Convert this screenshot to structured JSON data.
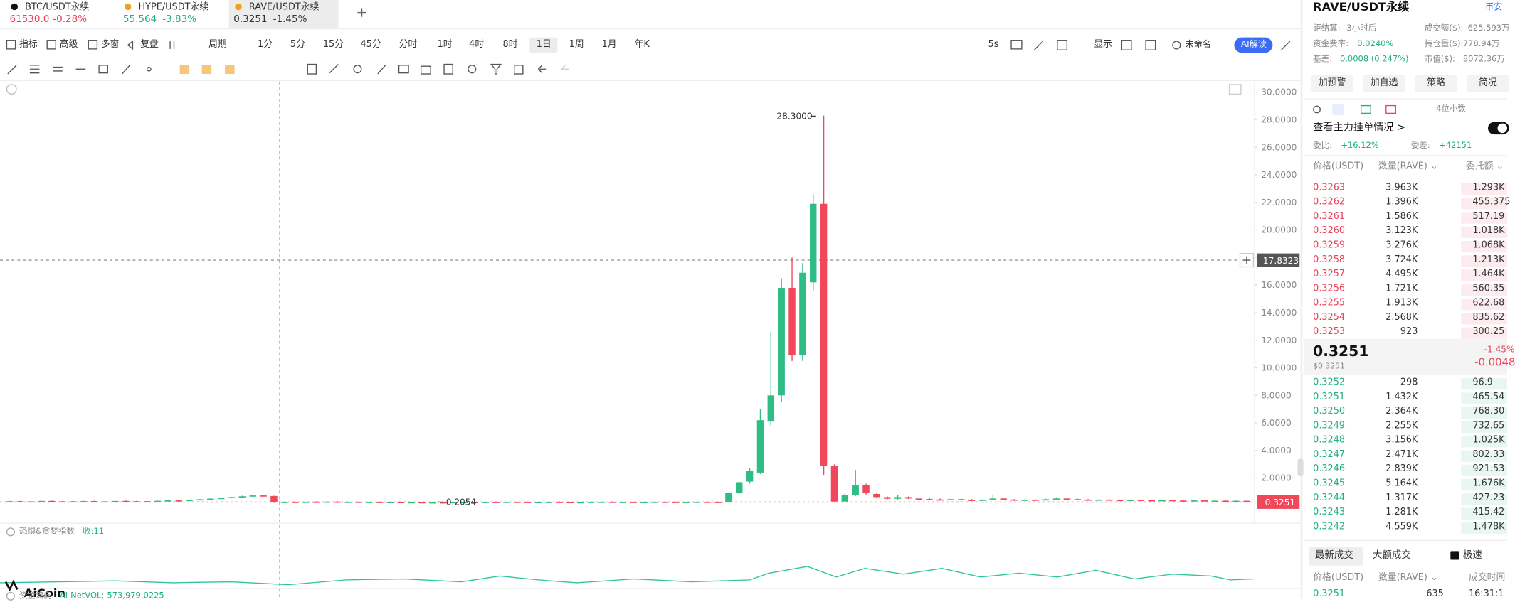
{
  "tabs": [
    {
      "symbol": "BTC/USDT永续",
      "price": "61530.0",
      "change": "-0.28%"
    },
    {
      "symbol": "HYPE/USDT永续",
      "price": "55.564",
      "change": "-3.83%"
    },
    {
      "symbol": "RAVE/USDT永续",
      "price": "0.3251",
      "change": "-1.45%"
    }
  ],
  "toolbar": {
    "tools": [
      "指标",
      "高级",
      "多窗",
      "复盘"
    ],
    "period_label": "周期",
    "periods": [
      "1分",
      "5分",
      "15分",
      "45分",
      "分时",
      "1时",
      "4时",
      "8时",
      "1日",
      "1周",
      "1月",
      "年K"
    ],
    "active_period_index": 8,
    "refresh": "5s",
    "display": "显示",
    "layout_name": "未命名",
    "ai_button": "AI解读"
  },
  "chart": {
    "ylim": [
      0,
      30
    ],
    "yticks": [
      {
        "value": 30,
        "label": "30.0000"
      },
      {
        "value": 28,
        "label": "28.0000"
      },
      {
        "value": 26,
        "label": "26.0000"
      },
      {
        "value": 24,
        "label": "24.0000"
      },
      {
        "value": 22,
        "label": "22.0000"
      },
      {
        "value": 20,
        "label": "20.0000"
      },
      {
        "value": 18,
        "label": "18.0000"
      },
      {
        "value": 16,
        "label": "16.0000"
      },
      {
        "value": 14,
        "label": "14.0000"
      },
      {
        "value": 12,
        "label": "12.0000"
      },
      {
        "value": 10,
        "label": "10.0000"
      },
      {
        "value": 8,
        "label": "8.0000"
      },
      {
        "value": 6,
        "label": "6.0000"
      },
      {
        "value": 4,
        "label": "4.0000"
      },
      {
        "value": 2,
        "label": "2.0000"
      }
    ],
    "up_color": "#2ebd85",
    "down_color": "#f0475a",
    "candles": [
      [
        0.3,
        0.34,
        0.27,
        0.32
      ],
      [
        0.32,
        0.35,
        0.28,
        0.29
      ],
      [
        0.29,
        0.33,
        0.26,
        0.31
      ],
      [
        0.31,
        0.36,
        0.29,
        0.34
      ],
      [
        0.34,
        0.37,
        0.3,
        0.31
      ],
      [
        0.31,
        0.34,
        0.27,
        0.28
      ],
      [
        0.28,
        0.33,
        0.26,
        0.32
      ],
      [
        0.32,
        0.36,
        0.3,
        0.33
      ],
      [
        0.33,
        0.36,
        0.29,
        0.3
      ],
      [
        0.3,
        0.33,
        0.27,
        0.31
      ],
      [
        0.31,
        0.35,
        0.29,
        0.34
      ],
      [
        0.34,
        0.38,
        0.31,
        0.32
      ],
      [
        0.32,
        0.35,
        0.28,
        0.3
      ],
      [
        0.3,
        0.34,
        0.28,
        0.33
      ],
      [
        0.33,
        0.37,
        0.31,
        0.35
      ],
      [
        0.35,
        0.4,
        0.33,
        0.38
      ],
      [
        0.38,
        0.42,
        0.34,
        0.36
      ],
      [
        0.36,
        0.44,
        0.35,
        0.42
      ],
      [
        0.42,
        0.48,
        0.4,
        0.46
      ],
      [
        0.46,
        0.53,
        0.43,
        0.51
      ],
      [
        0.51,
        0.58,
        0.48,
        0.56
      ],
      [
        0.56,
        0.64,
        0.53,
        0.62
      ],
      [
        0.62,
        0.72,
        0.58,
        0.68
      ],
      [
        0.68,
        0.8,
        0.64,
        0.74
      ],
      [
        0.74,
        0.78,
        0.66,
        0.7
      ],
      [
        0.7,
        0.72,
        0.2,
        0.24
      ],
      [
        0.24,
        0.3,
        0.21,
        0.27
      ],
      [
        0.27,
        0.31,
        0.24,
        0.25
      ],
      [
        0.25,
        0.29,
        0.22,
        0.28
      ],
      [
        0.28,
        0.32,
        0.25,
        0.26
      ],
      [
        0.26,
        0.3,
        0.23,
        0.29
      ],
      [
        0.29,
        0.33,
        0.26,
        0.27
      ],
      [
        0.27,
        0.3,
        0.24,
        0.28
      ],
      [
        0.28,
        0.31,
        0.25,
        0.26
      ],
      [
        0.26,
        0.29,
        0.23,
        0.27
      ],
      [
        0.27,
        0.3,
        0.24,
        0.25
      ],
      [
        0.25,
        0.28,
        0.22,
        0.26
      ],
      [
        0.26,
        0.29,
        0.23,
        0.24
      ],
      [
        0.24,
        0.27,
        0.22,
        0.25
      ],
      [
        0.25,
        0.28,
        0.22,
        0.23
      ],
      [
        0.23,
        0.26,
        0.21,
        0.24
      ],
      [
        0.24,
        0.26,
        0.2054,
        0.22
      ],
      [
        0.22,
        0.26,
        0.21,
        0.25
      ],
      [
        0.25,
        0.28,
        0.23,
        0.26
      ],
      [
        0.26,
        0.29,
        0.24,
        0.25
      ],
      [
        0.25,
        0.28,
        0.23,
        0.27
      ],
      [
        0.27,
        0.3,
        0.25,
        0.26
      ],
      [
        0.26,
        0.29,
        0.24,
        0.28
      ],
      [
        0.28,
        0.31,
        0.25,
        0.27
      ],
      [
        0.27,
        0.3,
        0.24,
        0.25
      ],
      [
        0.25,
        0.28,
        0.23,
        0.26
      ],
      [
        0.26,
        0.29,
        0.24,
        0.27
      ],
      [
        0.27,
        0.3,
        0.25,
        0.26
      ],
      [
        0.26,
        0.28,
        0.23,
        0.24
      ],
      [
        0.24,
        0.27,
        0.22,
        0.25
      ],
      [
        0.25,
        0.28,
        0.23,
        0.27
      ],
      [
        0.27,
        0.3,
        0.25,
        0.28
      ],
      [
        0.28,
        0.31,
        0.25,
        0.26
      ],
      [
        0.26,
        0.29,
        0.24,
        0.27
      ],
      [
        0.27,
        0.29,
        0.24,
        0.25
      ],
      [
        0.25,
        0.28,
        0.23,
        0.26
      ],
      [
        0.26,
        0.29,
        0.24,
        0.28
      ],
      [
        0.28,
        0.31,
        0.26,
        0.27
      ],
      [
        0.27,
        0.3,
        0.25,
        0.26
      ],
      [
        0.26,
        0.29,
        0.24,
        0.27
      ],
      [
        0.27,
        0.3,
        0.25,
        0.28
      ],
      [
        0.28,
        0.31,
        0.26,
        0.27
      ],
      [
        0.27,
        0.3,
        0.23,
        0.25
      ],
      [
        0.25,
        0.95,
        0.22,
        0.9
      ],
      [
        0.9,
        1.75,
        0.85,
        1.7
      ],
      [
        1.75,
        2.7,
        1.6,
        2.5
      ],
      [
        2.4,
        7.0,
        2.3,
        6.2
      ],
      [
        6.1,
        12.6,
        5.8,
        8.0
      ],
      [
        8.0,
        16.5,
        7.5,
        15.8
      ],
      [
        15.8,
        18.0,
        10.5,
        10.9
      ],
      [
        10.9,
        17.6,
        10.5,
        16.9
      ],
      [
        16.2,
        22.6,
        15.6,
        21.9
      ],
      [
        21.9,
        28.3,
        2.2,
        2.9
      ],
      [
        2.9,
        3.0,
        0.22,
        0.3
      ],
      [
        0.3,
        0.9,
        0.25,
        0.75
      ],
      [
        0.75,
        2.6,
        0.7,
        1.5
      ],
      [
        1.5,
        1.6,
        0.8,
        0.9
      ],
      [
        0.85,
        0.95,
        0.55,
        0.62
      ],
      [
        0.62,
        0.7,
        0.45,
        0.5
      ],
      [
        0.5,
        0.75,
        0.45,
        0.62
      ],
      [
        0.62,
        0.66,
        0.48,
        0.52
      ],
      [
        0.52,
        0.58,
        0.44,
        0.48
      ],
      [
        0.48,
        0.55,
        0.42,
        0.45
      ],
      [
        0.45,
        0.52,
        0.4,
        0.43
      ],
      [
        0.43,
        0.5,
        0.39,
        0.47
      ],
      [
        0.47,
        0.52,
        0.4,
        0.42
      ],
      [
        0.42,
        0.48,
        0.38,
        0.41
      ],
      [
        0.41,
        0.46,
        0.37,
        0.43
      ],
      [
        0.43,
        0.82,
        0.4,
        0.52
      ],
      [
        0.52,
        0.55,
        0.42,
        0.44
      ],
      [
        0.44,
        0.48,
        0.38,
        0.4
      ],
      [
        0.4,
        0.46,
        0.37,
        0.43
      ],
      [
        0.43,
        0.47,
        0.38,
        0.41
      ],
      [
        0.41,
        0.5,
        0.38,
        0.46
      ],
      [
        0.46,
        0.6,
        0.43,
        0.52
      ],
      [
        0.52,
        0.55,
        0.44,
        0.47
      ],
      [
        0.47,
        0.51,
        0.41,
        0.44
      ],
      [
        0.44,
        0.48,
        0.39,
        0.42
      ],
      [
        0.42,
        0.46,
        0.38,
        0.44
      ],
      [
        0.44,
        0.47,
        0.39,
        0.41
      ],
      [
        0.41,
        0.45,
        0.37,
        0.4
      ],
      [
        0.4,
        0.44,
        0.36,
        0.42
      ],
      [
        0.42,
        0.45,
        0.37,
        0.39
      ],
      [
        0.39,
        0.43,
        0.35,
        0.38
      ],
      [
        0.38,
        0.42,
        0.34,
        0.4
      ],
      [
        0.4,
        0.43,
        0.35,
        0.37
      ],
      [
        0.37,
        0.41,
        0.33,
        0.36
      ],
      [
        0.36,
        0.4,
        0.33,
        0.38
      ],
      [
        0.38,
        0.41,
        0.33,
        0.35
      ],
      [
        0.35,
        0.39,
        0.32,
        0.36
      ],
      [
        0.36,
        0.39,
        0.32,
        0.34
      ],
      [
        0.34,
        0.38,
        0.31,
        0.35
      ],
      [
        0.35,
        0.36,
        0.32,
        0.3251
      ]
    ],
    "high_label": "28.3000",
    "low_label": "0.2054",
    "last_price": "0.3251",
    "crosshair_price": "17.8323"
  },
  "indicators": [
    {
      "name": "恐惧&贪婪指数",
      "value": "收:11"
    },
    {
      "name": "资金流向",
      "value": "AI-NetVOL:-573,979.0225"
    }
  ],
  "logo": "AiCoin",
  "panel": {
    "title": "RAVE/USDT永续",
    "exchange": "币安",
    "info": [
      [
        "距结算:",
        "3小时后",
        "成交额($):",
        "625.593万"
      ],
      [
        "资金费率:",
        "0.0240%",
        "持仓量($):",
        "778.94万"
      ],
      [
        "基差:",
        "0.0008 (0.247%)",
        "市值($):",
        "8072.36万"
      ]
    ],
    "buttons": [
      "加预警",
      "加自选",
      "策略",
      "简况"
    ],
    "decimals": "4位小数",
    "main_orders": "查看主力挂单情况 >",
    "ratio_label": "委比:",
    "ratio": "+16.12%",
    "diff_label": "委差:",
    "diff": "+42151",
    "headers": [
      "价格(USDT)",
      "数量(RAVE) ⌄",
      "委托额 ⌄"
    ],
    "asks": [
      [
        "0.3263",
        "3.963K",
        "1.293K"
      ],
      [
        "0.3262",
        "1.396K",
        "455.375"
      ],
      [
        "0.3261",
        "1.586K",
        "517.19"
      ],
      [
        "0.3260",
        "3.123K",
        "1.018K"
      ],
      [
        "0.3259",
        "3.276K",
        "1.068K"
      ],
      [
        "0.3258",
        "3.724K",
        "1.213K"
      ],
      [
        "0.3257",
        "4.495K",
        "1.464K"
      ],
      [
        "0.3256",
        "1.721K",
        "560.35"
      ],
      [
        "0.3255",
        "1.913K",
        "622.68"
      ],
      [
        "0.3254",
        "2.568K",
        "835.62"
      ],
      [
        "0.3253",
        "923",
        "300.25"
      ]
    ],
    "mid": {
      "price": "0.3251",
      "usd": "$0.3251",
      "change_pct": "-1.45%",
      "change": "-0.0048"
    },
    "bids": [
      [
        "0.3252",
        "298",
        "96.9"
      ],
      [
        "0.3251",
        "1.432K",
        "465.54"
      ],
      [
        "0.3250",
        "2.364K",
        "768.30"
      ],
      [
        "0.3249",
        "2.255K",
        "732.65"
      ],
      [
        "0.3248",
        "3.156K",
        "1.025K"
      ],
      [
        "0.3247",
        "2.471K",
        "802.33"
      ],
      [
        "0.3246",
        "2.839K",
        "921.53"
      ],
      [
        "0.3245",
        "5.164K",
        "1.676K"
      ],
      [
        "0.3244",
        "1.317K",
        "427.23"
      ],
      [
        "0.3243",
        "1.281K",
        "415.42"
      ],
      [
        "0.3242",
        "4.559K",
        "1.478K"
      ]
    ],
    "trade_tabs": [
      "最新成交",
      "大额成交"
    ],
    "fast": "极速",
    "trade_headers": [
      "价格(USDT)",
      "数量(RAVE) ⌄",
      "成交时间"
    ],
    "trades": [
      [
        "0.3251",
        "635",
        "16:31:1"
      ]
    ]
  }
}
